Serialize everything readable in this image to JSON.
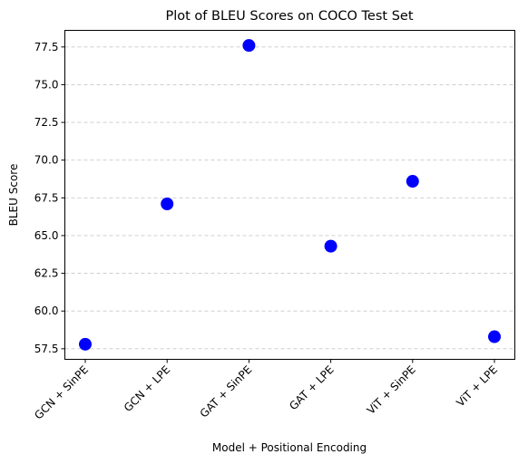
{
  "chart_data": {
    "type": "scatter",
    "title": "Plot of BLEU Scores on COCO Test Set",
    "xlabel": "Model + Positional Encoding",
    "ylabel": "BLEU Score",
    "categories": [
      "GCN + SinPE",
      "GCN + LPE",
      "GAT + SinPE",
      "GAT + LPE",
      "ViT + SinPE",
      "ViT + LPE"
    ],
    "values": [
      57.8,
      67.1,
      77.6,
      64.3,
      68.6,
      58.3
    ],
    "ylim": [
      56.8,
      78.6
    ],
    "yticks": [
      "57.5",
      "60.0",
      "62.5",
      "65.0",
      "67.5",
      "70.0",
      "72.5",
      "75.0",
      "77.5"
    ],
    "ytick_values": [
      57.5,
      60.0,
      62.5,
      65.0,
      67.5,
      70.0,
      72.5,
      75.0,
      77.5
    ],
    "grid": "y-dashed",
    "marker_color": "#0000ff",
    "grid_color": "#c8c8c8"
  }
}
